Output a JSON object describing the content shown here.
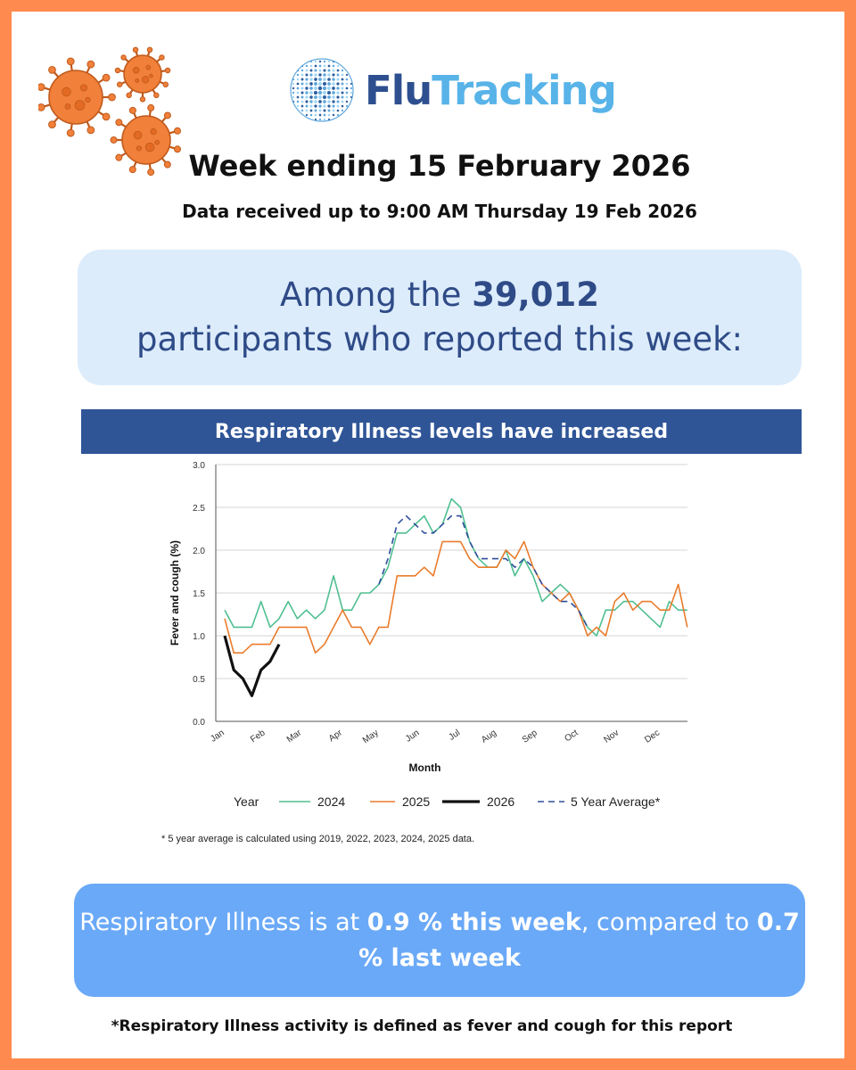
{
  "logo": {
    "part1": "Flu",
    "part2": "Tracking"
  },
  "header": {
    "week_title": "Week ending 15 February 2026",
    "data_received": "Data received up to 9:00 AM Thursday 19 Feb 2026"
  },
  "participants": {
    "prefix": "Among the ",
    "count": "39,012",
    "suffix": " participants who reported this week:"
  },
  "banner": "Respiratory Illness levels have increased",
  "chart_data": {
    "type": "line",
    "ylabel": "Fever and cough (%)",
    "xlabel": "Month",
    "ylim": [
      0,
      3.0
    ],
    "yticks": [
      "0.0",
      "0.5",
      "1.0",
      "1.5",
      "2.0",
      "2.5",
      "3.0"
    ],
    "grid": true,
    "x_unit": "week of year",
    "xlim": [
      1,
      53
    ],
    "month_ticks": [
      {
        "label": "Jan",
        "week": 1
      },
      {
        "label": "Feb",
        "week": 5.5
      },
      {
        "label": "Mar",
        "week": 9.5
      },
      {
        "label": "Apr",
        "week": 14
      },
      {
        "label": "May",
        "week": 18
      },
      {
        "label": "Jun",
        "week": 22.5
      },
      {
        "label": "Jul",
        "week": 27
      },
      {
        "label": "Aug",
        "week": 31
      },
      {
        "label": "Sep",
        "week": 35.5
      },
      {
        "label": "Oct",
        "week": 40
      },
      {
        "label": "Nov",
        "week": 44.5
      },
      {
        "label": "Dec",
        "week": 49
      }
    ],
    "legend_title": "Year",
    "legend_position": "bottom",
    "series": [
      {
        "name": "2024",
        "color": "#4fbf91",
        "style": "solid",
        "width": 1.6,
        "points": [
          [
            1,
            1.3
          ],
          [
            2,
            1.1
          ],
          [
            3,
            1.1
          ],
          [
            4,
            1.1
          ],
          [
            5,
            1.4
          ],
          [
            6,
            1.1
          ],
          [
            7,
            1.2
          ],
          [
            8,
            1.4
          ],
          [
            9,
            1.2
          ],
          [
            10,
            1.3
          ],
          [
            11,
            1.2
          ],
          [
            12,
            1.3
          ],
          [
            13,
            1.7
          ],
          [
            14,
            1.3
          ],
          [
            15,
            1.3
          ],
          [
            16,
            1.5
          ],
          [
            17,
            1.5
          ],
          [
            18,
            1.6
          ],
          [
            19,
            1.8
          ],
          [
            20,
            2.2
          ],
          [
            21,
            2.2
          ],
          [
            22,
            2.3
          ],
          [
            23,
            2.4
          ],
          [
            24,
            2.2
          ],
          [
            25,
            2.3
          ],
          [
            26,
            2.6
          ],
          [
            27,
            2.5
          ],
          [
            28,
            2.1
          ],
          [
            29,
            1.9
          ],
          [
            30,
            1.8
          ],
          [
            31,
            1.8
          ],
          [
            32,
            2.0
          ],
          [
            33,
            1.7
          ],
          [
            34,
            1.9
          ],
          [
            35,
            1.7
          ],
          [
            36,
            1.4
          ],
          [
            37,
            1.5
          ],
          [
            38,
            1.6
          ],
          [
            39,
            1.5
          ],
          [
            40,
            1.3
          ],
          [
            41,
            1.1
          ],
          [
            42,
            1.0
          ],
          [
            43,
            1.3
          ],
          [
            44,
            1.3
          ],
          [
            45,
            1.4
          ],
          [
            46,
            1.4
          ],
          [
            47,
            1.3
          ],
          [
            48,
            1.2
          ],
          [
            49,
            1.1
          ],
          [
            50,
            1.4
          ],
          [
            51,
            1.3
          ],
          [
            52,
            1.3
          ]
        ]
      },
      {
        "name": "2025",
        "color": "#ea7c2c",
        "style": "solid",
        "width": 1.6,
        "points": [
          [
            1,
            1.2
          ],
          [
            2,
            0.8
          ],
          [
            3,
            0.8
          ],
          [
            4,
            0.9
          ],
          [
            5,
            0.9
          ],
          [
            6,
            0.9
          ],
          [
            7,
            1.1
          ],
          [
            8,
            1.1
          ],
          [
            9,
            1.1
          ],
          [
            10,
            1.1
          ],
          [
            11,
            0.8
          ],
          [
            12,
            0.9
          ],
          [
            13,
            1.1
          ],
          [
            14,
            1.3
          ],
          [
            15,
            1.1
          ],
          [
            16,
            1.1
          ],
          [
            17,
            0.9
          ],
          [
            18,
            1.1
          ],
          [
            19,
            1.1
          ],
          [
            20,
            1.7
          ],
          [
            21,
            1.7
          ],
          [
            22,
            1.7
          ],
          [
            23,
            1.8
          ],
          [
            24,
            1.7
          ],
          [
            25,
            2.1
          ],
          [
            26,
            2.1
          ],
          [
            27,
            2.1
          ],
          [
            28,
            1.9
          ],
          [
            29,
            1.8
          ],
          [
            30,
            1.8
          ],
          [
            31,
            1.8
          ],
          [
            32,
            2.0
          ],
          [
            33,
            1.9
          ],
          [
            34,
            2.1
          ],
          [
            35,
            1.8
          ],
          [
            36,
            1.6
          ],
          [
            37,
            1.5
          ],
          [
            38,
            1.4
          ],
          [
            39,
            1.5
          ],
          [
            40,
            1.3
          ],
          [
            41,
            1.0
          ],
          [
            42,
            1.1
          ],
          [
            43,
            1.0
          ],
          [
            44,
            1.4
          ],
          [
            45,
            1.5
          ],
          [
            46,
            1.3
          ],
          [
            47,
            1.4
          ],
          [
            48,
            1.4
          ],
          [
            49,
            1.3
          ],
          [
            50,
            1.3
          ],
          [
            51,
            1.6
          ],
          [
            52,
            1.1
          ]
        ]
      },
      {
        "name": "2026",
        "color": "#111111",
        "style": "solid",
        "width": 3.2,
        "points": [
          [
            1,
            1.0
          ],
          [
            2,
            0.6
          ],
          [
            3,
            0.5
          ],
          [
            4,
            0.3
          ],
          [
            5,
            0.6
          ],
          [
            6,
            0.7
          ],
          [
            7,
            0.9
          ]
        ]
      },
      {
        "name": "5 Year Average*",
        "color": "#2f4f9a",
        "style": "dashed",
        "width": 1.6,
        "points": [
          [
            18,
            1.6
          ],
          [
            19,
            1.9
          ],
          [
            20,
            2.3
          ],
          [
            21,
            2.4
          ],
          [
            22,
            2.3
          ],
          [
            23,
            2.2
          ],
          [
            24,
            2.2
          ],
          [
            25,
            2.3
          ],
          [
            26,
            2.4
          ],
          [
            27,
            2.4
          ],
          [
            28,
            2.1
          ],
          [
            29,
            1.9
          ],
          [
            30,
            1.9
          ],
          [
            31,
            1.9
          ],
          [
            32,
            1.9
          ],
          [
            33,
            1.8
          ],
          [
            34,
            1.9
          ],
          [
            35,
            1.8
          ],
          [
            36,
            1.6
          ],
          [
            37,
            1.5
          ],
          [
            38,
            1.4
          ],
          [
            39,
            1.4
          ],
          [
            40,
            1.3
          ],
          [
            41,
            1.1
          ]
        ]
      }
    ],
    "footnote": "* 5 year average is calculated using 2019, 2022, 2023, 2024, 2025 data."
  },
  "rate": {
    "prefix": "Respiratory Illness is at ",
    "this_week": "0.9 % this week",
    "middle": ", compared to ",
    "last_week": "0.7 % last week"
  },
  "definition": "*Respiratory Illness activity is defined as fever and cough for this report",
  "colors": {
    "border": "#ff8a4f",
    "navy": "#2f5597",
    "light_blue": "#dcecfb",
    "rate_blue": "#6aa9f7",
    "virus": "#f0803a"
  },
  "icons": [
    "virus-icon",
    "globe-logo-icon"
  ]
}
